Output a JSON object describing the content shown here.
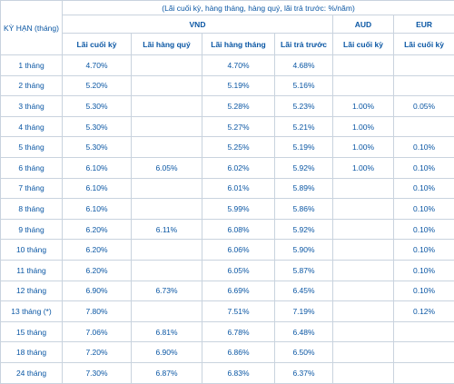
{
  "table": {
    "caption": "(Lãi cuối kỳ, hàng tháng, hàng quý, lãi trả trước: %/năm)",
    "term_header": "KỲ HẠN (tháng)",
    "currencies": {
      "vnd": "VND",
      "aud": "AUD",
      "eur": "EUR"
    },
    "subheaders": [
      "Lãi cuối kỳ",
      "Lãi hàng quý",
      "Lãi hàng tháng",
      "Lãi trả trước",
      "Lãi cuối kỳ",
      "Lãi cuối kỳ"
    ],
    "rows": [
      {
        "term": "1 tháng",
        "vnd_end": "4.70%",
        "vnd_quarter": "",
        "vnd_month": "4.70%",
        "vnd_prepaid": "4.68%",
        "aud_end": "",
        "eur_end": ""
      },
      {
        "term": "2 tháng",
        "vnd_end": "5.20%",
        "vnd_quarter": "",
        "vnd_month": "5.19%",
        "vnd_prepaid": "5.16%",
        "aud_end": "",
        "eur_end": ""
      },
      {
        "term": "3 tháng",
        "vnd_end": "5.30%",
        "vnd_quarter": "",
        "vnd_month": "5.28%",
        "vnd_prepaid": "5.23%",
        "aud_end": "1.00%",
        "eur_end": "0.05%"
      },
      {
        "term": "4 tháng",
        "vnd_end": "5.30%",
        "vnd_quarter": "",
        "vnd_month": "5.27%",
        "vnd_prepaid": "5.21%",
        "aud_end": "1.00%",
        "eur_end": ""
      },
      {
        "term": "5 tháng",
        "vnd_end": "5.30%",
        "vnd_quarter": "",
        "vnd_month": "5.25%",
        "vnd_prepaid": "5.19%",
        "aud_end": "1.00%",
        "eur_end": "0.10%"
      },
      {
        "term": "6 tháng",
        "vnd_end": "6.10%",
        "vnd_quarter": "6.05%",
        "vnd_month": "6.02%",
        "vnd_prepaid": "5.92%",
        "aud_end": "1.00%",
        "eur_end": "0.10%"
      },
      {
        "term": "7 tháng",
        "vnd_end": "6.10%",
        "vnd_quarter": "",
        "vnd_month": "6.01%",
        "vnd_prepaid": "5.89%",
        "aud_end": "",
        "eur_end": "0.10%"
      },
      {
        "term": "8 tháng",
        "vnd_end": "6.10%",
        "vnd_quarter": "",
        "vnd_month": "5.99%",
        "vnd_prepaid": "5.86%",
        "aud_end": "",
        "eur_end": "0.10%"
      },
      {
        "term": "9 tháng",
        "vnd_end": "6.20%",
        "vnd_quarter": "6.11%",
        "vnd_month": "6.08%",
        "vnd_prepaid": "5.92%",
        "aud_end": "",
        "eur_end": "0.10%"
      },
      {
        "term": "10 tháng",
        "vnd_end": "6.20%",
        "vnd_quarter": "",
        "vnd_month": "6.06%",
        "vnd_prepaid": "5.90%",
        "aud_end": "",
        "eur_end": "0.10%"
      },
      {
        "term": "11 tháng",
        "vnd_end": "6.20%",
        "vnd_quarter": "",
        "vnd_month": "6.05%",
        "vnd_prepaid": "5.87%",
        "aud_end": "",
        "eur_end": "0.10%"
      },
      {
        "term": "12 tháng",
        "vnd_end": "6.90%",
        "vnd_quarter": "6.73%",
        "vnd_month": "6.69%",
        "vnd_prepaid": "6.45%",
        "aud_end": "",
        "eur_end": "0.10%"
      },
      {
        "term": "13 tháng (*)",
        "vnd_end": "7.80%",
        "vnd_quarter": "",
        "vnd_month": "7.51%",
        "vnd_prepaid": "7.19%",
        "aud_end": "",
        "eur_end": "0.12%"
      },
      {
        "term": "15 tháng",
        "vnd_end": "7.06%",
        "vnd_quarter": "6.81%",
        "vnd_month": "6.78%",
        "vnd_prepaid": "6.48%",
        "aud_end": "",
        "eur_end": ""
      },
      {
        "term": "18 tháng",
        "vnd_end": "7.20%",
        "vnd_quarter": "6.90%",
        "vnd_month": "6.86%",
        "vnd_prepaid": "6.50%",
        "aud_end": "",
        "eur_end": ""
      },
      {
        "term": "24 tháng",
        "vnd_end": "7.30%",
        "vnd_quarter": "6.87%",
        "vnd_month": "6.83%",
        "vnd_prepaid": "6.37%",
        "aud_end": "",
        "eur_end": ""
      }
    ]
  }
}
